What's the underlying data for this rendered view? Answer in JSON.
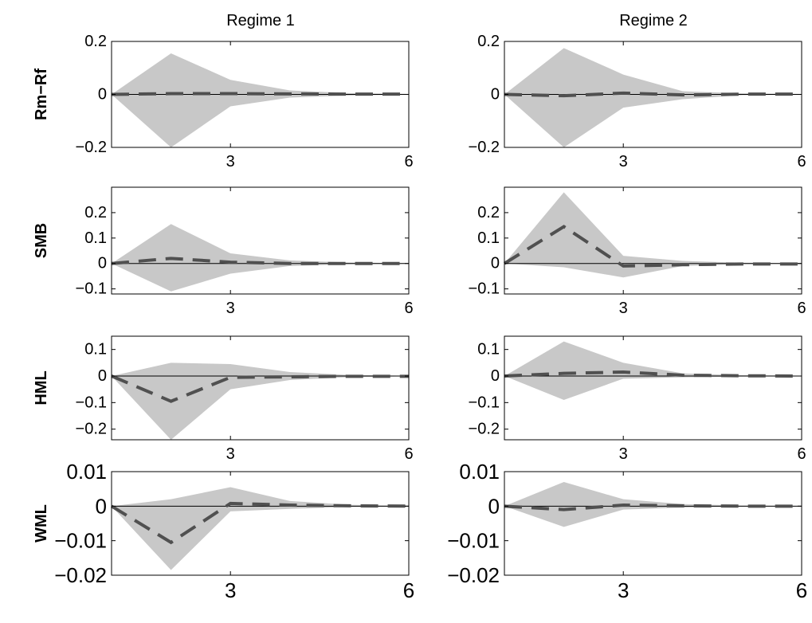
{
  "chart_data": {
    "type": "area",
    "columns": [
      "Regime 1",
      "Regime 2"
    ],
    "x": [
      1,
      2,
      3,
      4,
      5,
      6
    ],
    "xticks": [
      "3",
      "6"
    ],
    "xlim": [
      1,
      6
    ],
    "rows": [
      {
        "label": "Rm−Rf",
        "ylim": [
          -0.2,
          0.2
        ],
        "yticks": [
          "0.2",
          "0",
          "−0.2"
        ],
        "ytick_values": [
          0.2,
          0,
          -0.2
        ],
        "large_font": false,
        "panels": [
          {
            "irf": [
              0,
              0.003,
              0.003,
              0.002,
              0.001,
              0.001
            ],
            "upper": [
              0,
              0.155,
              0.055,
              0.015,
              0.005,
              0.002
            ],
            "lower": [
              0,
              -0.2,
              -0.045,
              -0.012,
              -0.004,
              -0.001
            ]
          },
          {
            "irf": [
              0,
              -0.005,
              0.005,
              -0.002,
              0.001,
              0.001
            ],
            "upper": [
              0,
              0.175,
              0.075,
              0.012,
              0.004,
              0.002
            ],
            "lower": [
              0,
              -0.2,
              -0.05,
              -0.018,
              -0.003,
              -0.001
            ]
          }
        ]
      },
      {
        "label": "SMB",
        "ylim": [
          -0.12,
          0.3
        ],
        "yticks": [
          "0.2",
          "0.1",
          "0",
          "−0.1"
        ],
        "ytick_values": [
          0.2,
          0.1,
          0,
          -0.1
        ],
        "large_font": false,
        "panels": [
          {
            "irf": [
              0,
              0.02,
              0.005,
              0.0,
              0.0,
              0.0
            ],
            "upper": [
              0,
              0.155,
              0.04,
              0.012,
              0.004,
              0.001
            ],
            "lower": [
              0,
              -0.11,
              -0.04,
              -0.01,
              -0.003,
              -0.001
            ]
          },
          {
            "irf": [
              0,
              0.145,
              -0.01,
              -0.005,
              -0.002,
              -0.002
            ],
            "upper": [
              0,
              0.28,
              0.03,
              0.01,
              0.003,
              0.001
            ],
            "lower": [
              0,
              -0.015,
              -0.055,
              -0.01,
              -0.003,
              -0.001
            ]
          }
        ]
      },
      {
        "label": "HML",
        "ylim": [
          -0.24,
          0.15
        ],
        "yticks": [
          "0.1",
          "0",
          "−0.1",
          "−0.2"
        ],
        "ytick_values": [
          0.1,
          0,
          -0.1,
          -0.2
        ],
        "large_font": false,
        "panels": [
          {
            "irf": [
              0,
              -0.095,
              -0.005,
              -0.003,
              -0.001,
              -0.001
            ],
            "upper": [
              0,
              0.05,
              0.045,
              0.015,
              0.004,
              0.001
            ],
            "lower": [
              0,
              -0.24,
              -0.05,
              -0.015,
              -0.004,
              -0.001
            ]
          },
          {
            "irf": [
              0,
              0.01,
              0.015,
              0.003,
              0.001,
              0.0
            ],
            "upper": [
              0,
              0.13,
              0.05,
              0.01,
              0.003,
              0.001
            ],
            "lower": [
              0,
              -0.09,
              -0.01,
              -0.005,
              -0.002,
              -0.001
            ]
          }
        ]
      },
      {
        "label": "WML",
        "ylim": [
          -0.02,
          0.01
        ],
        "yticks": [
          "0.01",
          "0",
          "−0.01",
          "−0.02"
        ],
        "ytick_values": [
          0.01,
          0,
          -0.01,
          -0.02
        ],
        "large_font": true,
        "panels": [
          {
            "irf": [
              0,
              -0.0105,
              0.0008,
              0.0003,
              0.0001,
              0.0
            ],
            "upper": [
              0,
              0.002,
              0.0055,
              0.0015,
              0.0004,
              0.0001
            ],
            "lower": [
              0,
              -0.0185,
              -0.0015,
              -0.0008,
              -0.0002,
              -0.0001
            ]
          },
          {
            "irf": [
              0,
              -0.001,
              0.0003,
              0.0001,
              0.0,
              0.0
            ],
            "upper": [
              0,
              0.007,
              0.002,
              0.0006,
              0.0002,
              0.0001
            ],
            "lower": [
              0,
              -0.006,
              -0.001,
              -0.0004,
              -0.0001,
              0.0
            ]
          }
        ]
      }
    ]
  }
}
